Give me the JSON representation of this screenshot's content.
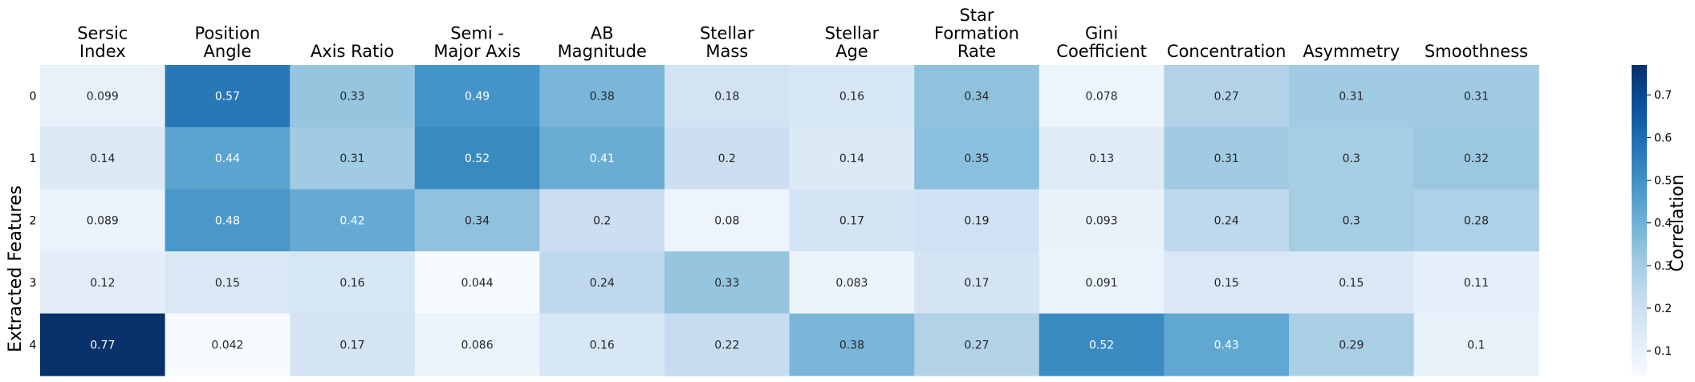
{
  "chart_data": {
    "type": "heatmap",
    "columns": [
      [
        "Sersic",
        "Index"
      ],
      [
        "Position",
        "Angle"
      ],
      [
        "Axis Ratio"
      ],
      [
        "Semi -",
        "Major Axis"
      ],
      [
        "AB",
        "Magnitude"
      ],
      [
        "Stellar",
        "Mass"
      ],
      [
        "Stellar",
        "Age"
      ],
      [
        "Star",
        "Formation",
        "Rate"
      ],
      [
        "Gini",
        "Coefficient"
      ],
      [
        "Concentration"
      ],
      [
        "Asymmetry"
      ],
      [
        "Smoothness"
      ]
    ],
    "rows": [
      "0",
      "1",
      "2",
      "3",
      "4"
    ],
    "values": [
      [
        0.099,
        0.57,
        0.33,
        0.49,
        0.38,
        0.18,
        0.16,
        0.34,
        0.078,
        0.27,
        0.31,
        0.31
      ],
      [
        0.14,
        0.44,
        0.31,
        0.52,
        0.41,
        0.2,
        0.14,
        0.35,
        0.13,
        0.31,
        0.3,
        0.32
      ],
      [
        0.089,
        0.48,
        0.42,
        0.34,
        0.2,
        0.08,
        0.17,
        0.19,
        0.093,
        0.24,
        0.3,
        0.28
      ],
      [
        0.12,
        0.15,
        0.16,
        0.044,
        0.24,
        0.33,
        0.083,
        0.17,
        0.091,
        0.15,
        0.15,
        0.11
      ],
      [
        0.77,
        0.042,
        0.17,
        0.086,
        0.16,
        0.22,
        0.38,
        0.27,
        0.52,
        0.43,
        0.29,
        0.1
      ]
    ],
    "ylabel": "Extracted Features",
    "colorbar": {
      "label": "Correlation",
      "range": [
        0.042,
        0.77
      ],
      "ticks": [
        "0.1",
        "0.2",
        "0.3",
        "0.4",
        "0.5",
        "0.6",
        "0.7"
      ]
    },
    "colormap": "Blues",
    "colormap_stops": [
      "#f7fbff",
      "#deebf7",
      "#c6dbef",
      "#9ecae1",
      "#6baed6",
      "#4292c6",
      "#2171b5",
      "#08519c",
      "#08306b"
    ]
  }
}
